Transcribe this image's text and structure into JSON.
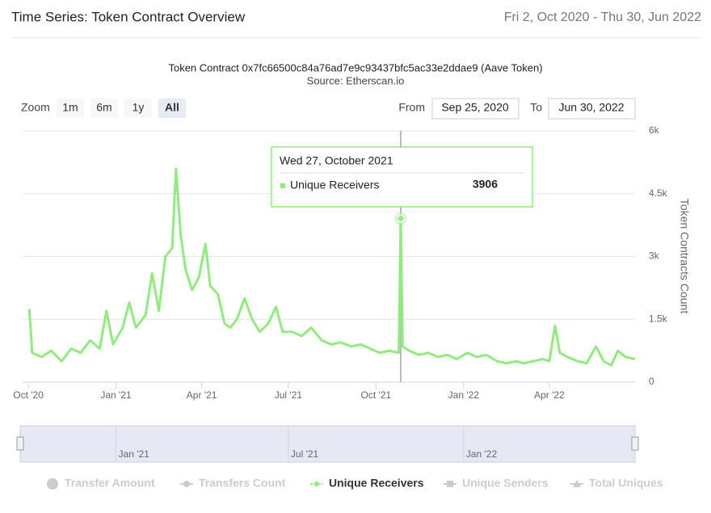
{
  "header": {
    "title": "Time Series: Token Contract Overview",
    "date_range": "Fri 2, Oct 2020 - Thu 30, Jun 2022"
  },
  "controls": {
    "zoom_label": "Zoom",
    "zoom_buttons": [
      "1m",
      "6m",
      "1y",
      "All"
    ],
    "selected": "All",
    "from_label": "From",
    "from_value": "Sep 25, 2020",
    "to_label": "To",
    "to_value": "Jun 30, 2022"
  },
  "chart_data": {
    "type": "line",
    "title": "Token Contract 0x7fc66500c84a76ad7e9c93437bfc5ac33e2ddae9 (Aave Token)",
    "subtitle": "Source: Etherscan.io",
    "y_label": "Token Contracts Count",
    "xlim": [
      "2020-09-25",
      "2022-06-30"
    ],
    "xticks": [
      {
        "value": "2020-10-01",
        "label": "Oct '20"
      },
      {
        "value": "2021-01-01",
        "label": "Jan '21"
      },
      {
        "value": "2021-04-01",
        "label": "Apr '21"
      },
      {
        "value": "2021-07-01",
        "label": "Jul '21"
      },
      {
        "value": "2021-10-01",
        "label": "Oct '21"
      },
      {
        "value": "2022-01-01",
        "label": "Jan '22"
      },
      {
        "value": "2022-04-01",
        "label": "Apr '22"
      }
    ],
    "ylim": [
      0,
      6000
    ],
    "yticks": [
      0,
      {
        "value": 1500,
        "label": "1.5k"
      },
      {
        "value": 3000,
        "label": "3k"
      },
      {
        "value": 4500,
        "label": "4.5k"
      },
      {
        "value": 6000,
        "label": "6k"
      }
    ],
    "grid": true,
    "x": [
      "2020-10-02",
      "2020-10-05",
      "2020-10-15",
      "2020-10-25",
      "2020-11-05",
      "2020-11-15",
      "2020-11-25",
      "2020-12-05",
      "2020-12-15",
      "2020-12-22",
      "2020-12-29",
      "2021-01-08",
      "2021-01-15",
      "2021-01-22",
      "2021-02-01",
      "2021-02-08",
      "2021-02-15",
      "2021-02-22",
      "2021-03-01",
      "2021-03-05",
      "2021-03-10",
      "2021-03-15",
      "2021-03-22",
      "2021-03-29",
      "2021-04-05",
      "2021-04-10",
      "2021-04-18",
      "2021-04-25",
      "2021-05-01",
      "2021-05-08",
      "2021-05-16",
      "2021-05-24",
      "2021-06-01",
      "2021-06-10",
      "2021-06-18",
      "2021-06-25",
      "2021-07-05",
      "2021-07-15",
      "2021-07-25",
      "2021-08-05",
      "2021-08-15",
      "2021-08-25",
      "2021-09-05",
      "2021-09-15",
      "2021-09-25",
      "2021-10-05",
      "2021-10-15",
      "2021-10-25",
      "2021-10-27",
      "2021-10-29",
      "2021-11-05",
      "2021-11-15",
      "2021-11-25",
      "2021-12-05",
      "2021-12-15",
      "2021-12-25",
      "2022-01-05",
      "2022-01-15",
      "2022-01-25",
      "2022-02-05",
      "2022-02-15",
      "2022-02-25",
      "2022-03-05",
      "2022-03-15",
      "2022-03-25",
      "2022-04-01",
      "2022-04-07",
      "2022-04-12",
      "2022-04-20",
      "2022-05-01",
      "2022-05-10",
      "2022-05-20",
      "2022-05-28",
      "2022-06-05",
      "2022-06-12",
      "2022-06-20",
      "2022-06-30"
    ],
    "series": [
      {
        "name": "Unique Receivers",
        "color": "#90ed7d",
        "values": [
          1750,
          700,
          600,
          750,
          500,
          800,
          700,
          1000,
          800,
          1700,
          900,
          1300,
          1900,
          1300,
          1600,
          2600,
          1700,
          3000,
          3200,
          5100,
          3500,
          2700,
          2200,
          2500,
          3300,
          2300,
          2100,
          1400,
          1300,
          1500,
          2000,
          1500,
          1200,
          1400,
          1800,
          1200,
          1200,
          1100,
          1300,
          1000,
          900,
          950,
          850,
          900,
          800,
          700,
          750,
          700,
          3906,
          850,
          750,
          650,
          700,
          600,
          650,
          550,
          700,
          600,
          650,
          500,
          450,
          500,
          450,
          500,
          550,
          500,
          1350,
          700,
          600,
          500,
          450,
          850,
          500,
          400,
          750,
          600,
          550
        ]
      }
    ],
    "hidden_series": [
      "Transfer Amount",
      "Transfers Count",
      "Unique Senders",
      "Total Uniques"
    ],
    "tooltip": {
      "title": "Wed 27, October 2021",
      "x": "2021-10-27"
    },
    "navigator_ticks": [
      {
        "value": "2021-01-01",
        "label": "Jan '21"
      },
      {
        "value": "2021-07-01",
        "label": "Jul '21"
      },
      {
        "value": "2022-01-01",
        "label": "Jan '22"
      }
    ]
  }
}
